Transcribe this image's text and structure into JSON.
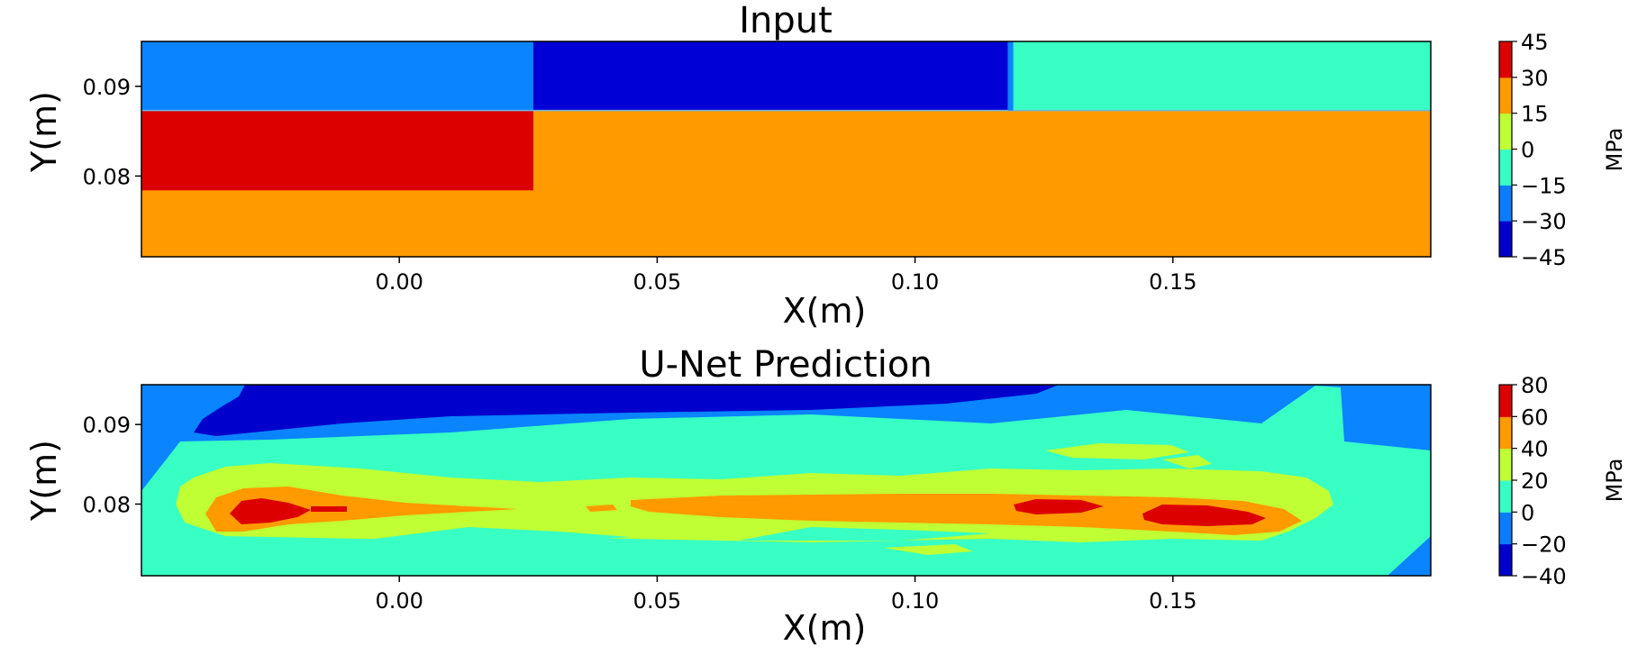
{
  "chart_data": [
    {
      "type": "heatmap",
      "title": "Input",
      "xlabel": "X(m)",
      "ylabel": "Y(m)",
      "xlim": [
        -0.05,
        0.2
      ],
      "ylim": [
        0.071,
        0.095
      ],
      "xticks": [
        "0.00",
        "0.05",
        "0.10",
        "0.15"
      ],
      "xtick_values": [
        0.0,
        0.05,
        0.1,
        0.15
      ],
      "yticks": [
        "0.08",
        "0.09"
      ],
      "ytick_values": [
        0.08,
        0.09
      ],
      "colorbar": {
        "label": "MPa",
        "ticks": [
          "45",
          "30",
          "15",
          "0",
          "−15",
          "−30",
          "−45"
        ],
        "levels": [
          -45,
          -30,
          -15,
          0,
          15,
          30,
          45
        ],
        "colors": [
          "#0000cc",
          "#0a7dff",
          "#38ffc4",
          "#bfff33",
          "#ff9a00",
          "#dd0000"
        ]
      },
      "regions": [
        {
          "name": "top-left",
          "x": [
            -0.05,
            0.026
          ],
          "y": [
            0.0873,
            0.095
          ],
          "value": -22.5,
          "color": "#0a84ff"
        },
        {
          "name": "top-middle",
          "x": [
            0.026,
            0.118
          ],
          "y": [
            0.0873,
            0.095
          ],
          "value": -37.5,
          "color": "#0000d6"
        },
        {
          "name": "top-right",
          "x": [
            0.118,
            0.2
          ],
          "y": [
            0.0873,
            0.095
          ],
          "value": -7.5,
          "color": "#38ffc4"
        },
        {
          "name": "red-block",
          "x": [
            -0.05,
            0.026
          ],
          "y": [
            0.0784,
            0.0873
          ],
          "value": 37.5,
          "color": "#dd0000"
        },
        {
          "name": "orange-field",
          "x": [
            -0.05,
            0.2
          ],
          "y": [
            0.071,
            0.0873
          ],
          "value": 22.5,
          "color": "#ff9a00"
        }
      ]
    },
    {
      "type": "heatmap",
      "title": "U-Net Prediction",
      "xlabel": "X(m)",
      "ylabel": "Y(m)",
      "xlim": [
        -0.05,
        0.2
      ],
      "ylim": [
        0.071,
        0.095
      ],
      "xticks": [
        "0.00",
        "0.05",
        "0.10",
        "0.15"
      ],
      "xtick_values": [
        0.0,
        0.05,
        0.1,
        0.15
      ],
      "yticks": [
        "0.08",
        "0.09"
      ],
      "ytick_values": [
        0.08,
        0.09
      ],
      "colorbar": {
        "label": "MPa",
        "ticks": [
          "80",
          "60",
          "40",
          "20",
          "0",
          "−20",
          "−40"
        ],
        "levels": [
          -40,
          -20,
          0,
          20,
          40,
          60,
          80
        ],
        "colors": [
          "#0000cc",
          "#0a7dff",
          "#38ffc4",
          "#bfff33",
          "#ff9a00",
          "#dd0000"
        ]
      }
    }
  ]
}
